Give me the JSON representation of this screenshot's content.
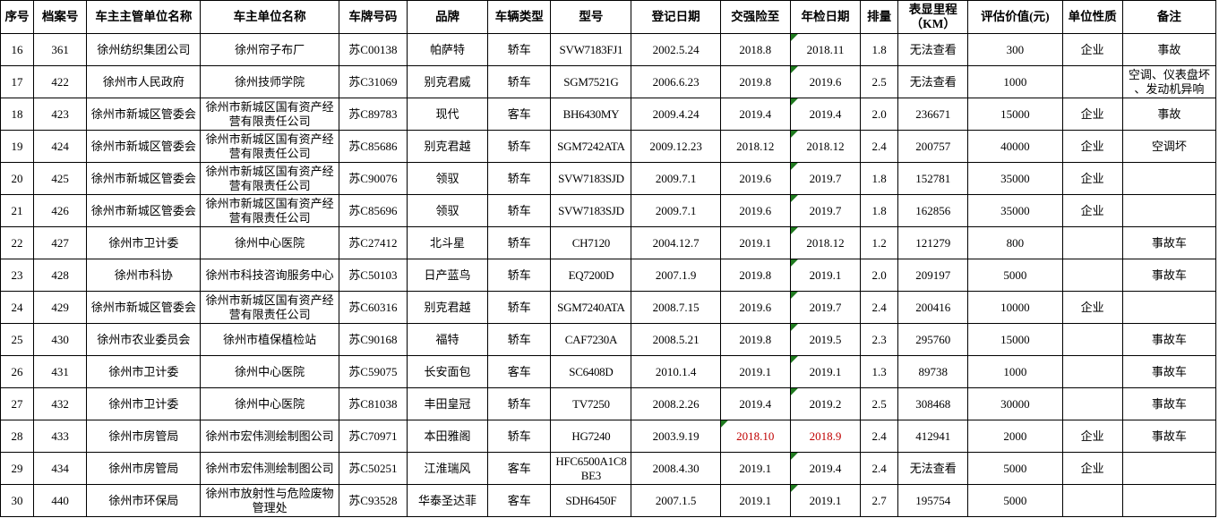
{
  "colors": {
    "alert_red": "#c00000",
    "flag_green": "#1f7a1f",
    "grid_border": "#000000",
    "background": "#ffffff"
  },
  "table": {
    "columns": [
      {
        "key": "seq",
        "label": "序号"
      },
      {
        "key": "file_no",
        "label": "档案号"
      },
      {
        "key": "supervisor",
        "label": "车主主管单位名称"
      },
      {
        "key": "owner",
        "label": "车主单位名称"
      },
      {
        "key": "plate",
        "label": "车牌号码"
      },
      {
        "key": "brand",
        "label": "品牌"
      },
      {
        "key": "vehicle_type",
        "label": "车辆类型"
      },
      {
        "key": "model",
        "label": "型号"
      },
      {
        "key": "reg_date",
        "label": "登记日期"
      },
      {
        "key": "insurance_until",
        "label": "交强险至"
      },
      {
        "key": "inspection_date",
        "label": "年检日期"
      },
      {
        "key": "displacement",
        "label": "排量"
      },
      {
        "key": "mileage",
        "label": "表显里程\n（KM）"
      },
      {
        "key": "value",
        "label": "评估价值(元)"
      },
      {
        "key": "unit_nature",
        "label": "单位性质"
      },
      {
        "key": "remark",
        "label": "备注"
      }
    ],
    "rows": [
      {
        "seq": "16",
        "file_no": "361",
        "supervisor": "徐州纺织集团公司",
        "owner": "徐州帘子布厂",
        "plate": "苏C00138",
        "brand": "帕萨特",
        "vehicle_type": "轿车",
        "model": "SVW7183FJ1",
        "reg_date": "2002.5.24",
        "insurance_until": "2018.8",
        "inspection_date": "2018.11",
        "displacement": "1.8",
        "mileage": "无法查看",
        "value": "300",
        "unit_nature": "企业",
        "remark": "事故",
        "flags": [
          "inspection_date"
        ],
        "red": []
      },
      {
        "seq": "17",
        "file_no": "422",
        "supervisor": "徐州市人民政府",
        "owner": "徐州技师学院",
        "plate": "苏C31069",
        "brand": "别克君威",
        "vehicle_type": "轿车",
        "model": "SGM7521G",
        "reg_date": "2006.6.23",
        "insurance_until": "2019.8",
        "inspection_date": "2019.6",
        "displacement": "2.5",
        "mileage": "无法查看",
        "value": "1000",
        "unit_nature": "",
        "remark": "空调、仪表盘坏\n、发动机异响",
        "flags": [
          "inspection_date"
        ],
        "red": []
      },
      {
        "seq": "18",
        "file_no": "423",
        "supervisor": "徐州市新城区管委会",
        "owner": "徐州市新城区国有资产经营有限责任公司",
        "plate": "苏C89783",
        "brand": "现代",
        "vehicle_type": "客车",
        "model": "BH6430MY",
        "reg_date": "2009.4.24",
        "insurance_until": "2019.4",
        "inspection_date": "2019.4",
        "displacement": "2.0",
        "mileage": "236671",
        "value": "15000",
        "unit_nature": "企业",
        "remark": "事故",
        "flags": [
          "inspection_date"
        ],
        "red": []
      },
      {
        "seq": "19",
        "file_no": "424",
        "supervisor": "徐州市新城区管委会",
        "owner": "徐州市新城区国有资产经营有限责任公司",
        "plate": "苏C85686",
        "brand": "别克君越",
        "vehicle_type": "轿车",
        "model": "SGM7242ATA",
        "reg_date": "2009.12.23",
        "insurance_until": "2018.12",
        "inspection_date": "2018.12",
        "displacement": "2.4",
        "mileage": "200757",
        "value": "40000",
        "unit_nature": "企业",
        "remark": "空调坏",
        "flags": [
          "inspection_date"
        ],
        "red": []
      },
      {
        "seq": "20",
        "file_no": "425",
        "supervisor": "徐州市新城区管委会",
        "owner": "徐州市新城区国有资产经营有限责任公司",
        "plate": "苏C90076",
        "brand": "领驭",
        "vehicle_type": "轿车",
        "model": "SVW7183SJD",
        "reg_date": "2009.7.1",
        "insurance_until": "2019.6",
        "inspection_date": "2019.7",
        "displacement": "1.8",
        "mileage": "152781",
        "value": "35000",
        "unit_nature": "企业",
        "remark": "",
        "flags": [
          "inspection_date"
        ],
        "red": []
      },
      {
        "seq": "21",
        "file_no": "426",
        "supervisor": "徐州市新城区管委会",
        "owner": "徐州市新城区国有资产经营有限责任公司",
        "plate": "苏C85696",
        "brand": "领驭",
        "vehicle_type": "轿车",
        "model": "SVW7183SJD",
        "reg_date": "2009.7.1",
        "insurance_until": "2019.6",
        "inspection_date": "2019.7",
        "displacement": "1.8",
        "mileage": "162856",
        "value": "35000",
        "unit_nature": "企业",
        "remark": "",
        "flags": [
          "inspection_date"
        ],
        "red": []
      },
      {
        "seq": "22",
        "file_no": "427",
        "supervisor": "徐州市卫计委",
        "owner": "徐州中心医院",
        "plate": "苏C27412",
        "brand": "北斗星",
        "vehicle_type": "轿车",
        "model": "CH7120",
        "reg_date": "2004.12.7",
        "insurance_until": "2019.1",
        "inspection_date": "2018.12",
        "displacement": "1.2",
        "mileage": "121279",
        "value": "800",
        "unit_nature": "",
        "remark": "事故车",
        "flags": [
          "inspection_date"
        ],
        "red": []
      },
      {
        "seq": "23",
        "file_no": "428",
        "supervisor": "徐州市科协",
        "owner": "徐州市科技咨询服务中心",
        "plate": "苏C50103",
        "brand": "日产蓝鸟",
        "vehicle_type": "轿车",
        "model": "EQ7200D",
        "reg_date": "2007.1.9",
        "insurance_until": "2019.8",
        "inspection_date": "2019.1",
        "displacement": "2.0",
        "mileage": "209197",
        "value": "5000",
        "unit_nature": "",
        "remark": "事故车",
        "flags": [
          "inspection_date"
        ],
        "red": []
      },
      {
        "seq": "24",
        "file_no": "429",
        "supervisor": "徐州市新城区管委会",
        "owner": "徐州市新城区国有资产经营有限责任公司",
        "plate": "苏C60316",
        "brand": "别克君越",
        "vehicle_type": "轿车",
        "model": "SGM7240ATA",
        "reg_date": "2008.7.15",
        "insurance_until": "2019.6",
        "inspection_date": "2019.7",
        "displacement": "2.4",
        "mileage": "200416",
        "value": "10000",
        "unit_nature": "企业",
        "remark": "",
        "flags": [
          "inspection_date"
        ],
        "red": []
      },
      {
        "seq": "25",
        "file_no": "430",
        "supervisor": "徐州市农业委员会",
        "owner": "徐州市植保植检站",
        "plate": "苏C90168",
        "brand": "福特",
        "vehicle_type": "轿车",
        "model": "CAF7230A",
        "reg_date": "2008.5.21",
        "insurance_until": "2019.8",
        "inspection_date": "2019.5",
        "displacement": "2.3",
        "mileage": "295760",
        "value": "15000",
        "unit_nature": "",
        "remark": "事故车",
        "flags": [
          "inspection_date"
        ],
        "red": [],
        "page_break_above": true
      },
      {
        "seq": "26",
        "file_no": "431",
        "supervisor": "徐州市卫计委",
        "owner": "徐州中心医院",
        "plate": "苏C59075",
        "brand": "长安面包",
        "vehicle_type": "客车",
        "model": "SC6408D",
        "reg_date": "2010.1.4",
        "insurance_until": "2019.1",
        "inspection_date": "2019.1",
        "displacement": "1.3",
        "mileage": "89738",
        "value": "1000",
        "unit_nature": "",
        "remark": "事故车",
        "flags": [
          "inspection_date"
        ],
        "red": []
      },
      {
        "seq": "27",
        "file_no": "432",
        "supervisor": "徐州市卫计委",
        "owner": "徐州中心医院",
        "plate": "苏C81038",
        "brand": "丰田皇冠",
        "vehicle_type": "轿车",
        "model": "TV7250",
        "reg_date": "2008.2.26",
        "insurance_until": "2019.4",
        "inspection_date": "2019.2",
        "displacement": "2.5",
        "mileage": "308468",
        "value": "30000",
        "unit_nature": "",
        "remark": "事故车",
        "flags": [
          "inspection_date"
        ],
        "red": []
      },
      {
        "seq": "28",
        "file_no": "433",
        "supervisor": "徐州市房管局",
        "owner": "徐州市宏伟测绘制图公司",
        "plate": "苏C70971",
        "brand": "本田雅阁",
        "vehicle_type": "轿车",
        "model": "HG7240",
        "reg_date": "2003.9.19",
        "insurance_until": "2018.10",
        "inspection_date": "2018.9",
        "displacement": "2.4",
        "mileage": "412941",
        "value": "2000",
        "unit_nature": "企业",
        "remark": "事故车",
        "flags": [
          "insurance_until"
        ],
        "red": [
          "insurance_until",
          "inspection_date"
        ]
      },
      {
        "seq": "29",
        "file_no": "434",
        "supervisor": "徐州市房管局",
        "owner": "徐州市宏伟测绘制图公司",
        "plate": "苏C50251",
        "brand": "江淮瑞风",
        "vehicle_type": "客车",
        "model": "HFC6500A1C8BE3",
        "reg_date": "2008.4.30",
        "insurance_until": "2019.1",
        "inspection_date": "2019.4",
        "displacement": "2.4",
        "mileage": "无法查看",
        "value": "5000",
        "unit_nature": "企业",
        "remark": "",
        "flags": [
          "inspection_date"
        ],
        "red": []
      },
      {
        "seq": "30",
        "file_no": "440",
        "supervisor": "徐州市环保局",
        "owner": "徐州市放射性与危险废物\n管理处",
        "plate": "苏C93528",
        "brand": "华泰圣达菲",
        "vehicle_type": "客车",
        "model": "SDH6450F",
        "reg_date": "2007.1.5",
        "insurance_until": "2019.1",
        "inspection_date": "2019.1",
        "displacement": "2.7",
        "mileage": "195754",
        "value": "5000",
        "unit_nature": "",
        "remark": "",
        "flags": [
          "inspection_date"
        ],
        "red": []
      }
    ]
  }
}
